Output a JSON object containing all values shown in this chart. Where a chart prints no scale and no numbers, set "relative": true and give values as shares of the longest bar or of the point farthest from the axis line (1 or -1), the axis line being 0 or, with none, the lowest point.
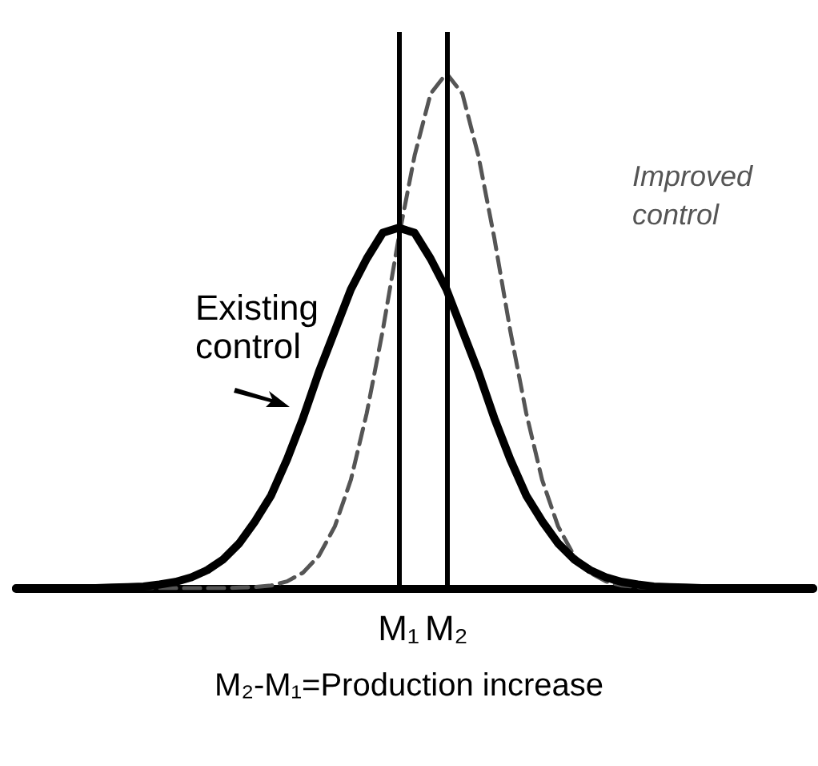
{
  "chart_data": {
    "type": "line",
    "relative": true,
    "categories": [
      null,
      null,
      null,
      null,
      null,
      null,
      null,
      null,
      null,
      null,
      null,
      null,
      null,
      null,
      null,
      null,
      null,
      null,
      null,
      null,
      null,
      null,
      null,
      null,
      "M₁",
      null,
      null,
      "M₂",
      null,
      null,
      null,
      null,
      null,
      null,
      null,
      null,
      null,
      null,
      null,
      null,
      null,
      null,
      null,
      null,
      null,
      null,
      null,
      null,
      null,
      null,
      null
    ],
    "series": [
      {
        "name": "Existing control",
        "color": "#000000",
        "line_style": "solid",
        "values": [
          0,
          0,
          0,
          0,
          0,
          0,
          0.001,
          0.002,
          0.003,
          0.007,
          0.012,
          0.021,
          0.035,
          0.056,
          0.087,
          0.13,
          0.18,
          0.25,
          0.33,
          0.42,
          0.5,
          0.58,
          0.64,
          0.69,
          0.7,
          0.69,
          0.64,
          0.58,
          0.5,
          0.42,
          0.33,
          0.25,
          0.18,
          0.13,
          0.087,
          0.056,
          0.035,
          0.021,
          0.012,
          0.007,
          0.003,
          0.002,
          0.001,
          0,
          0,
          0,
          0,
          0,
          0,
          0,
          0
        ]
      },
      {
        "name": "Improved control",
        "color": "#555555",
        "line_style": "dashed",
        "values": [
          0,
          0,
          0,
          0,
          0,
          0,
          0,
          0,
          0,
          0,
          0,
          0,
          0,
          0,
          0.001,
          0.002,
          0.005,
          0.013,
          0.03,
          0.063,
          0.12,
          0.21,
          0.34,
          0.5,
          0.68,
          0.84,
          0.96,
          1,
          0.96,
          0.84,
          0.68,
          0.5,
          0.34,
          0.21,
          0.12,
          0.063,
          0.03,
          0.013,
          0.005,
          0.002,
          0.001,
          0,
          0,
          0,
          0,
          0,
          0,
          0,
          0,
          0,
          0
        ]
      }
    ],
    "ref_lines": [
      {
        "axis": "x",
        "value": "M₁"
      },
      {
        "axis": "x",
        "value": "M₂"
      }
    ],
    "annotations": [
      "M₂-M₁=Production increase"
    ],
    "legend": false,
    "grid": false,
    "marker": "none"
  }
}
